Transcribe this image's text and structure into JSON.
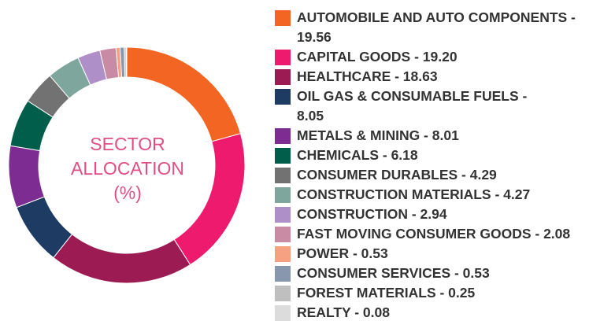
{
  "chart_data": {
    "type": "pie",
    "style": "donut",
    "center_label": [
      "SECTOR",
      "ALLOCATION",
      "(%)"
    ],
    "legend_position": "right",
    "categories": [
      "AUTOMOBILE AND AUTO COMPONENTS",
      "CAPITAL GOODS",
      "HEALTHCARE",
      "OIL GAS & CONSUMABLE FUELS",
      "METALS & MINING",
      "CHEMICALS",
      "CONSUMER DURABLES",
      "CONSTRUCTION MATERIALS",
      "CONSTRUCTION",
      "FAST MOVING CONSUMER GOODS",
      "POWER",
      "CONSUMER SERVICES",
      "FOREST MATERIALS",
      "REALTY"
    ],
    "values": [
      19.56,
      19.2,
      18.63,
      8.05,
      8.01,
      6.18,
      4.29,
      4.27,
      2.94,
      2.08,
      0.53,
      0.53,
      0.25,
      0.08
    ],
    "legend_labels": [
      "AUTOMOBILE AND AUTO COMPONENTS - 19.56",
      "CAPITAL GOODS - 19.20",
      "HEALTHCARE - 18.63",
      "OIL GAS & CONSUMABLE FUELS - 8.05",
      "METALS & MINING - 8.01",
      "CHEMICALS - 6.18",
      "CONSUMER DURABLES - 4.29",
      "CONSTRUCTION MATERIALS - 4.27",
      "CONSTRUCTION - 2.94",
      "FAST MOVING CONSUMER GOODS - 2.08",
      "POWER - 0.53",
      "CONSUMER SERVICES - 0.53",
      "FOREST MATERIALS - 0.25",
      "REALTY - 0.08"
    ],
    "colors": [
      "#f26522",
      "#ed1a6e",
      "#9c1b52",
      "#1d3b63",
      "#7d2d91",
      "#005e4a",
      "#727272",
      "#7fa69d",
      "#ae8fc7",
      "#c98ba4",
      "#f7a183",
      "#8897ad",
      "#bfbfbf",
      "#dcdcdc"
    ]
  }
}
